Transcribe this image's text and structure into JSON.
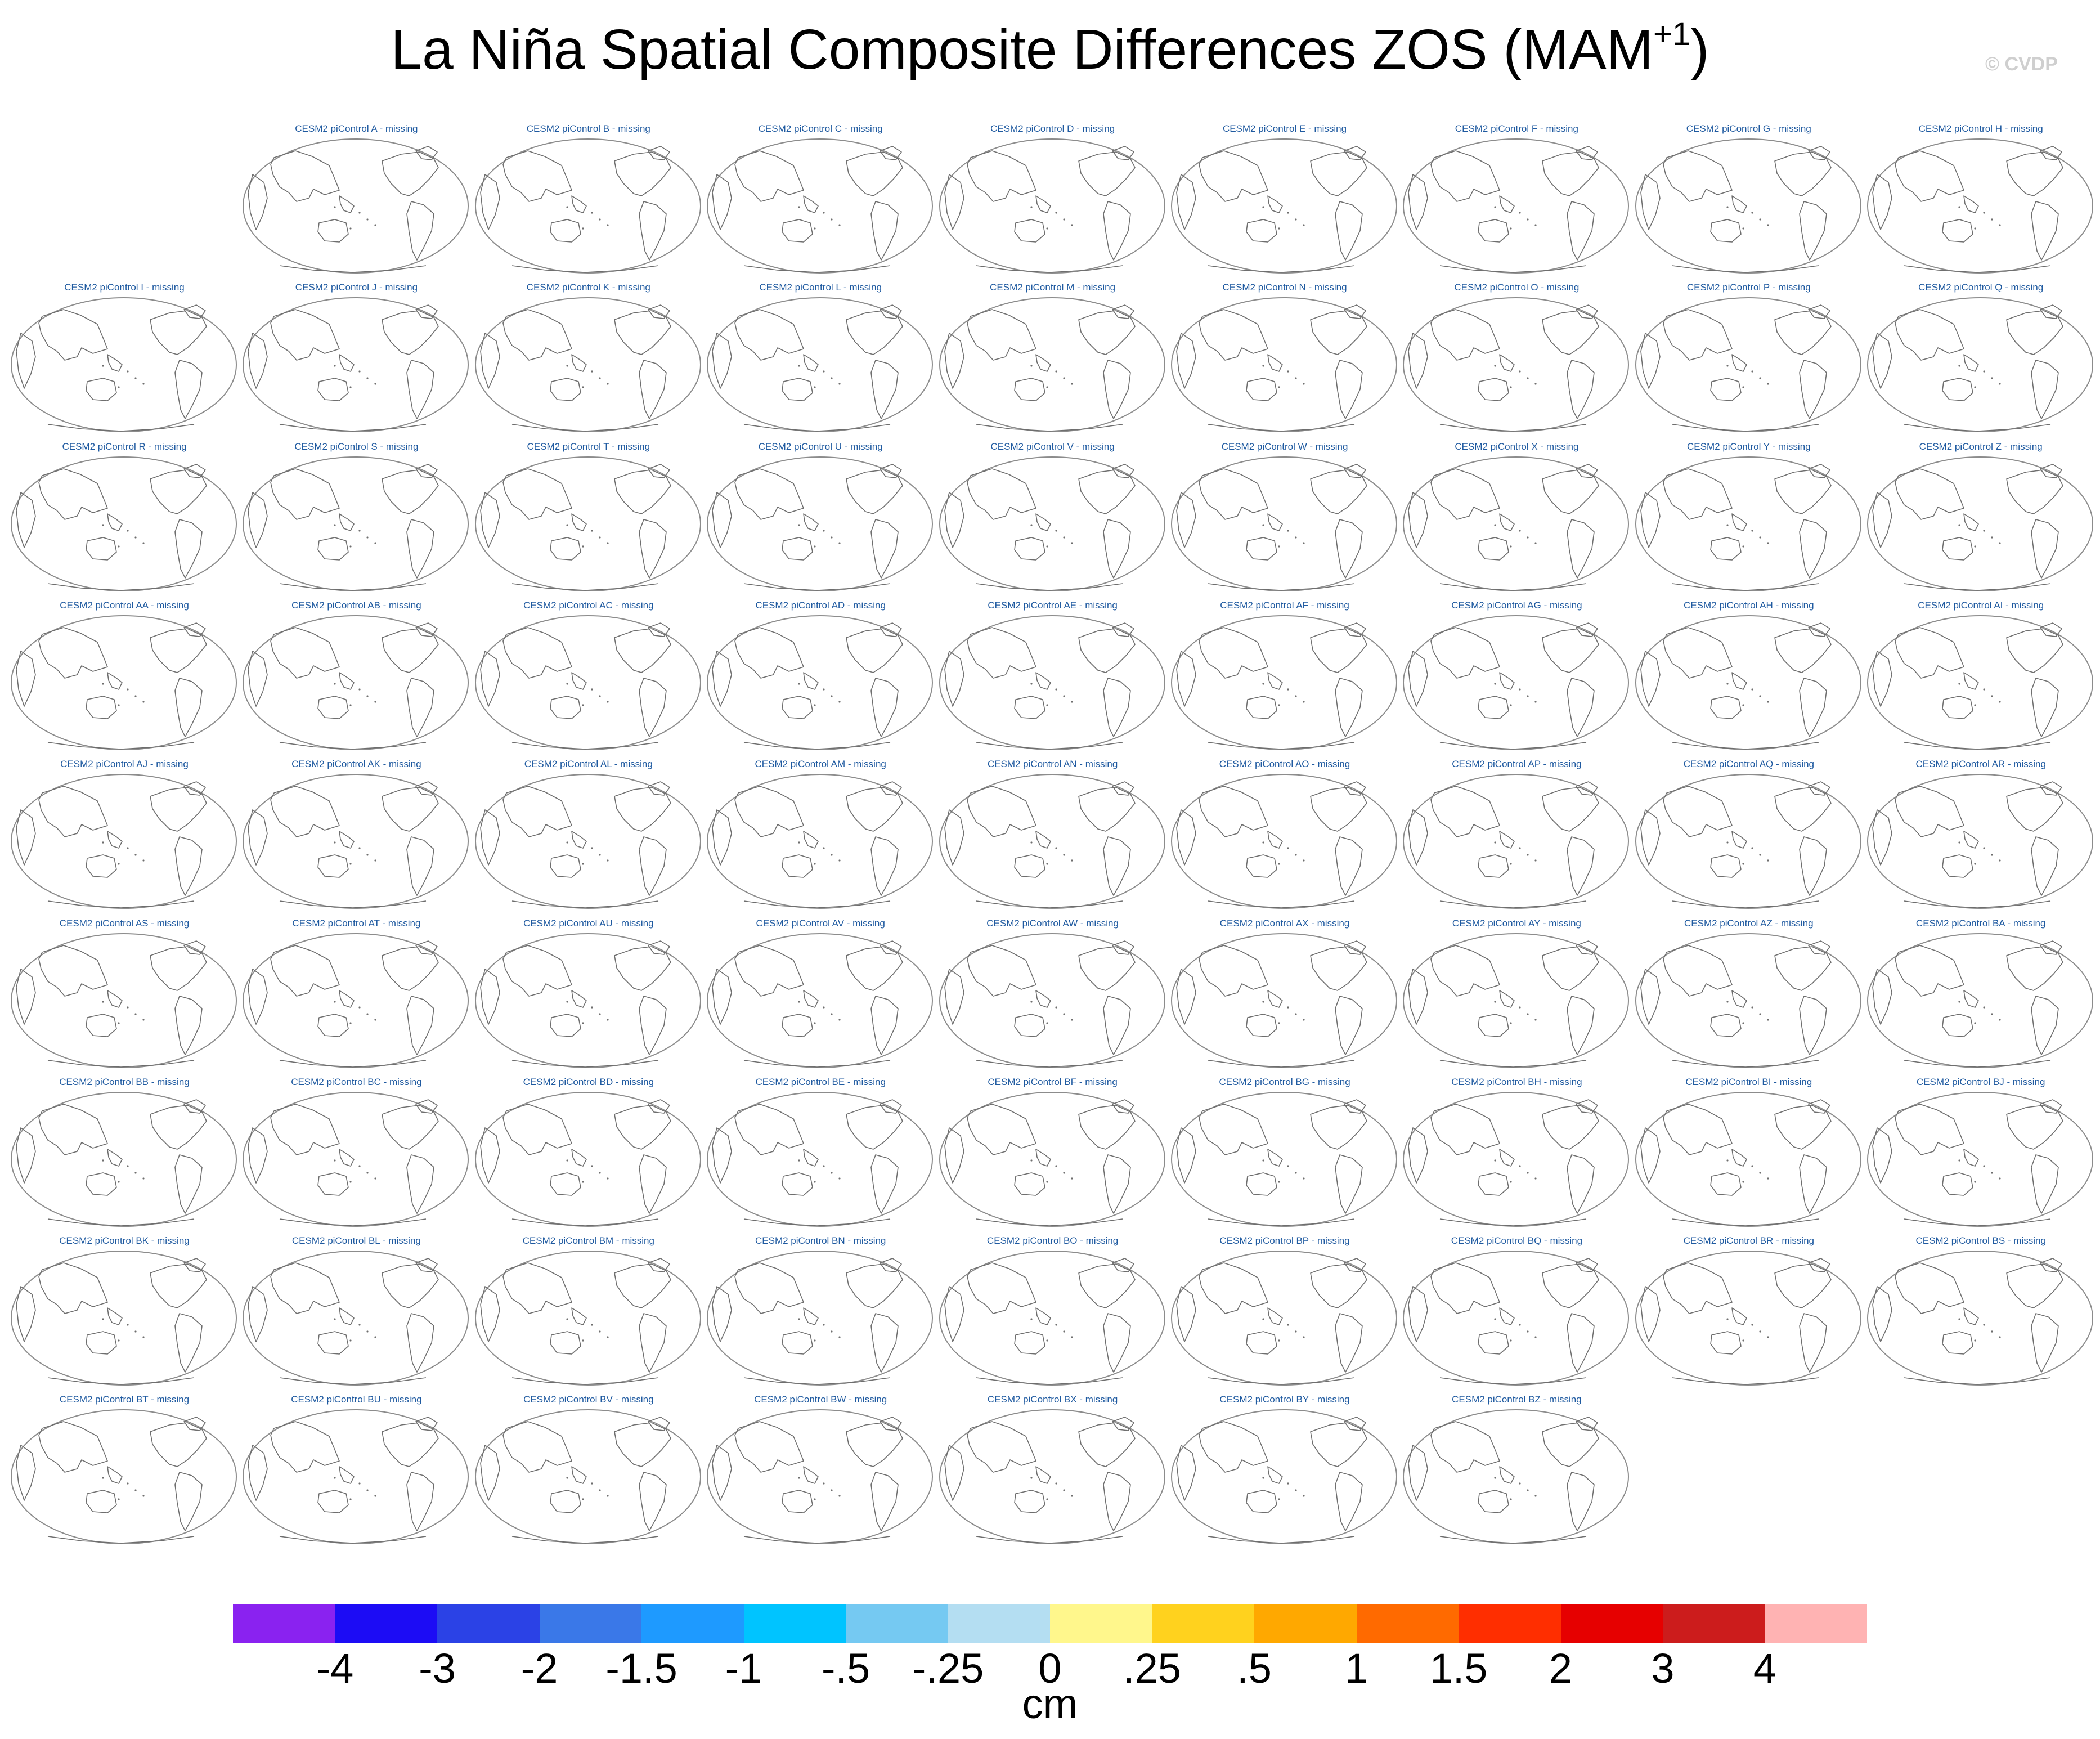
{
  "chart_data": {
    "type": "heatmap",
    "title": "La Niña Spatial Composite Differences ZOS (MAM",
    "title_superscript": "+1",
    "title_suffix": ")",
    "watermark": "© CVDP",
    "projection_note": "world maps, coastlines only, no data plotted",
    "panel_title_suffix": " - missing",
    "panels": [
      "CESM2 piControl A - missing",
      "CESM2 piControl B - missing",
      "CESM2 piControl C - missing",
      "CESM2 piControl D - missing",
      "CESM2 piControl E - missing",
      "CESM2 piControl F - missing",
      "CESM2 piControl G - missing",
      "CESM2 piControl H - missing",
      "CESM2 piControl I - missing",
      "CESM2 piControl J - missing",
      "CESM2 piControl K - missing",
      "CESM2 piControl L - missing",
      "CESM2 piControl M - missing",
      "CESM2 piControl N - missing",
      "CESM2 piControl O - missing",
      "CESM2 piControl P - missing",
      "CESM2 piControl Q - missing",
      "CESM2 piControl R - missing",
      "CESM2 piControl S - missing",
      "CESM2 piControl T - missing",
      "CESM2 piControl U - missing",
      "CESM2 piControl V - missing",
      "CESM2 piControl W - missing",
      "CESM2 piControl X - missing",
      "CESM2 piControl Y - missing",
      "CESM2 piControl Z - missing",
      "CESM2 piControl AA - missing",
      "CESM2 piControl AB - missing",
      "CESM2 piControl AC - missing",
      "CESM2 piControl AD - missing",
      "CESM2 piControl AE - missing",
      "CESM2 piControl AF - missing",
      "CESM2 piControl AG - missing",
      "CESM2 piControl AH - missing",
      "CESM2 piControl AI - missing",
      "CESM2 piControl AJ - missing",
      "CESM2 piControl AK - missing",
      "CESM2 piControl AL - missing",
      "CESM2 piControl AM - missing",
      "CESM2 piControl AN - missing",
      "CESM2 piControl AO - missing",
      "CESM2 piControl AP - missing",
      "CESM2 piControl AQ - missing",
      "CESM2 piControl AR - missing",
      "CESM2 piControl AS - missing",
      "CESM2 piControl AT - missing",
      "CESM2 piControl AU - missing",
      "CESM2 piControl AV - missing",
      "CESM2 piControl AW - missing",
      "CESM2 piControl AX - missing",
      "CESM2 piControl AY - missing",
      "CESM2 piControl AZ - missing",
      "CESM2 piControl BA - missing",
      "CESM2 piControl BB - missing",
      "CESM2 piControl BC - missing",
      "CESM2 piControl BD - missing",
      "CESM2 piControl BE - missing",
      "CESM2 piControl BF - missing",
      "CESM2 piControl BG - missing",
      "CESM2 piControl BH - missing",
      "CESM2 piControl BI - missing",
      "CESM2 piControl BJ - missing",
      "CESM2 piControl BK - missing",
      "CESM2 piControl BL - missing",
      "CESM2 piControl BM - missing",
      "CESM2 piControl BN - missing",
      "CESM2 piControl BO - missing",
      "CESM2 piControl BP - missing",
      "CESM2 piControl BQ - missing",
      "CESM2 piControl BR - missing",
      "CESM2 piControl BS - missing",
      "CESM2 piControl BT - missing",
      "CESM2 piControl BU - missing",
      "CESM2 piControl BV - missing",
      "CESM2 piControl BW - missing",
      "CESM2 piControl BX - missing",
      "CESM2 piControl BY - missing",
      "CESM2 piControl BZ - missing"
    ],
    "grid_rows": [
      {
        "start_column": 1,
        "count": 8
      },
      {
        "start_column": 0,
        "count": 9
      },
      {
        "start_column": 0,
        "count": 9
      },
      {
        "start_column": 0,
        "count": 9
      },
      {
        "start_column": 0,
        "count": 9
      },
      {
        "start_column": 0,
        "count": 9
      },
      {
        "start_column": 0,
        "count": 9
      },
      {
        "start_column": 0,
        "count": 9
      },
      {
        "start_column": 0,
        "count": 7
      }
    ],
    "colorbar": {
      "levels": [
        "-4",
        "-3",
        "-2",
        "-1.5",
        "-1",
        "-.5",
        "-.25",
        "0",
        ".25",
        ".5",
        "1",
        "1.5",
        "2",
        "3",
        "4"
      ],
      "colors": [
        "#8a22f0",
        "#1c0cf5",
        "#2b42e6",
        "#3a78e8",
        "#1e9aff",
        "#00c4ff",
        "#75c9f2",
        "#b4def2",
        "#fff78c",
        "#ffd21e",
        "#ffa800",
        "#ff6a00",
        "#ff2e00",
        "#e60000",
        "#cc1c1c",
        "#ffb3b3"
      ],
      "units": "cm"
    }
  }
}
